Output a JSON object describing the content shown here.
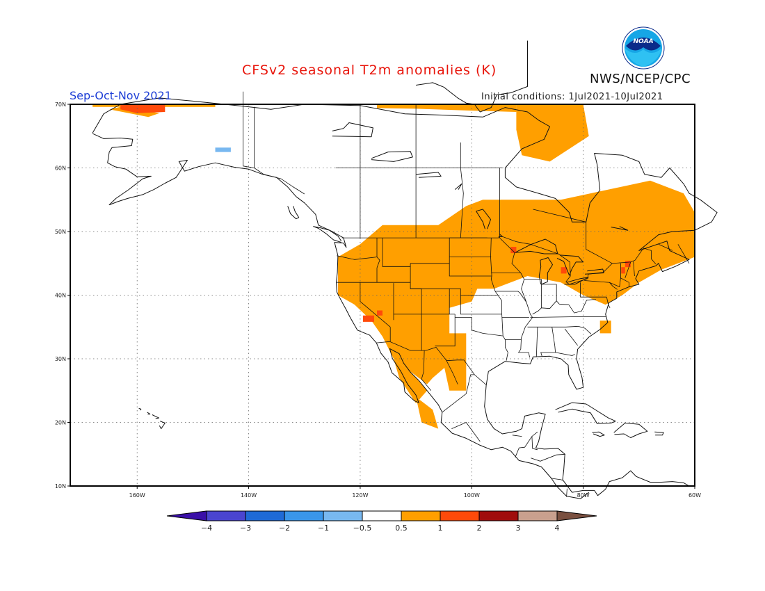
{
  "title": "CFSv2 seasonal T2m anomalies (K)",
  "agency": "NWS/NCEP/CPC",
  "logo_text": "NOAA",
  "season": "Sep-Oct-Nov 2021",
  "initial_conditions": "Initial conditions: 1Jul2021-10Jul2021",
  "map": {
    "projection": "equirectangular",
    "lon_range": [
      -172,
      -60
    ],
    "lat_range": [
      10,
      70
    ],
    "lat_ticks": [
      {
        "value": 70,
        "label": "70N"
      },
      {
        "value": 60,
        "label": "60N"
      },
      {
        "value": 50,
        "label": "50N"
      },
      {
        "value": 40,
        "label": "40N"
      },
      {
        "value": 30,
        "label": "30N"
      },
      {
        "value": 20,
        "label": "20N"
      },
      {
        "value": 10,
        "label": "10N"
      }
    ],
    "lon_ticks": [
      {
        "value": -160,
        "label": "160W"
      },
      {
        "value": -140,
        "label": "140W"
      },
      {
        "value": -120,
        "label": "120W"
      },
      {
        "value": -100,
        "label": "100W"
      },
      {
        "value": -80,
        "label": "80W"
      },
      {
        "value": -60,
        "label": "60W"
      }
    ],
    "grid": "dotted"
  },
  "colorbar": {
    "boundaries": [
      "-4",
      "-3",
      "-2",
      "-1",
      "-0.5",
      "0.5",
      "1",
      "2",
      "3",
      "4"
    ],
    "colors": [
      "#3a0fa8",
      "#4a45d0",
      "#1f6ad6",
      "#3a96ea",
      "#78b8f0",
      "#ffffff",
      "#ff9f00",
      "#ff4a0a",
      "#a00d0d",
      "#c9a08e",
      "#7a5040"
    ]
  },
  "anomaly_regions": [
    {
      "level": "0.5-1",
      "color": "#ff9f00",
      "polygon": [
        [
          -168,
          69.6
        ],
        [
          -146,
          69.6
        ],
        [
          -146,
          70
        ],
        [
          -168,
          70
        ]
      ]
    },
    {
      "level": "0.5-1",
      "color": "#ff9f00",
      "polygon": [
        [
          -165,
          69.2
        ],
        [
          -158,
          68
        ],
        [
          -156,
          68.6
        ],
        [
          -163,
          69.6
        ]
      ]
    },
    {
      "level": "1-2",
      "color": "#ff4a0a",
      "polygon": [
        [
          -163,
          70
        ],
        [
          -155,
          70
        ],
        [
          -155,
          68.8
        ],
        [
          -160,
          68.6
        ],
        [
          -163,
          69.2
        ]
      ]
    },
    {
      "level": "-1--0.5",
      "color": "#78b8f0",
      "polygon": [
        [
          -146,
          63.2
        ],
        [
          -143.2,
          63.2
        ],
        [
          -143.2,
          62.5
        ],
        [
          -146,
          62.5
        ]
      ]
    },
    {
      "level": "0.5-1",
      "color": "#ff9f00",
      "polygon": [
        [
          -117,
          70
        ],
        [
          -92,
          70
        ],
        [
          -92,
          68.8
        ],
        [
          -100,
          69
        ],
        [
          -110,
          69.3
        ],
        [
          -117,
          69.4
        ]
      ]
    },
    {
      "level": "0.5-1",
      "color": "#ff9f00",
      "polygon": [
        [
          -92,
          70
        ],
        [
          -80,
          70
        ],
        [
          -79,
          65
        ],
        [
          -86,
          61
        ],
        [
          -91,
          62
        ],
        [
          -92,
          66
        ]
      ]
    },
    {
      "level": "0.5-1",
      "color": "#ff9f00",
      "polygon": [
        [
          -84,
          55
        ],
        [
          -68,
          58
        ],
        [
          -62,
          56
        ],
        [
          -60,
          53
        ],
        [
          -60,
          46
        ],
        [
          -66,
          44
        ],
        [
          -70,
          42
        ],
        [
          -73,
          40
        ],
        [
          -76,
          38.5
        ],
        [
          -80,
          40
        ],
        [
          -84,
          42
        ],
        [
          -90,
          43
        ],
        [
          -96,
          41
        ],
        [
          -99,
          41
        ],
        [
          -100,
          39
        ],
        [
          -104,
          38
        ],
        [
          -104,
          33
        ],
        [
          -103,
          30
        ],
        [
          -107,
          27
        ],
        [
          -108,
          26
        ],
        [
          -114,
          30
        ],
        [
          -116,
          33.5
        ],
        [
          -118,
          36
        ],
        [
          -121,
          38.5
        ],
        [
          -124,
          40
        ],
        [
          -124,
          42
        ],
        [
          -124,
          46
        ],
        [
          -122,
          47
        ],
        [
          -120,
          48
        ],
        [
          -116,
          51
        ],
        [
          -106,
          51
        ],
        [
          -101,
          54
        ],
        [
          -98,
          55
        ],
        [
          -93,
          55
        ],
        [
          -90,
          55
        ],
        [
          -86,
          55
        ]
      ]
    },
    {
      "level": "0.5-1",
      "color": "#ff9f00",
      "polygon": [
        [
          -105,
          34
        ],
        [
          -101,
          34
        ],
        [
          -101,
          25
        ],
        [
          -104,
          25
        ],
        [
          -105,
          29
        ]
      ]
    },
    {
      "level": "0.5-1",
      "color": "#ff9f00",
      "polygon": [
        [
          -114,
          30
        ],
        [
          -111,
          28
        ],
        [
          -108,
          25
        ],
        [
          -110,
          23
        ],
        [
          -113,
          27
        ]
      ]
    },
    {
      "level": "0.5-1",
      "color": "#ff9f00",
      "polygon": [
        [
          -110,
          24
        ],
        [
          -107,
          22
        ],
        [
          -106,
          19
        ],
        [
          -109,
          20
        ]
      ]
    },
    {
      "level": "0.5-1",
      "color": "#ff9f00",
      "polygon": [
        [
          -77,
          36
        ],
        [
          -75,
          36
        ],
        [
          -75,
          34
        ],
        [
          -77,
          34
        ]
      ]
    },
    {
      "level": "1-2",
      "color": "#ff4a0a",
      "polygon": [
        [
          -119.5,
          36.8
        ],
        [
          -117.5,
          36.8
        ],
        [
          -117.5,
          35.8
        ],
        [
          -119.5,
          35.8
        ]
      ]
    },
    {
      "level": "1-2",
      "color": "#ff4a0a",
      "polygon": [
        [
          -117,
          37.6
        ],
        [
          -116,
          37.6
        ],
        [
          -116,
          36.8
        ],
        [
          -117,
          36.8
        ]
      ]
    },
    {
      "level": "1-2",
      "color": "#ff4a0a",
      "polygon": [
        [
          -93,
          47.6
        ],
        [
          -92,
          47.6
        ],
        [
          -92,
          46.6
        ],
        [
          -93,
          46.6
        ]
      ]
    },
    {
      "level": "1-2",
      "color": "#ff4a0a",
      "polygon": [
        [
          -84,
          44.4
        ],
        [
          -83,
          44.4
        ],
        [
          -83,
          43.4
        ],
        [
          -84,
          43.4
        ]
      ]
    },
    {
      "level": "1-2",
      "color": "#ff4a0a",
      "polygon": [
        [
          -72.5,
          45.4
        ],
        [
          -71.5,
          45.4
        ],
        [
          -71.5,
          44.4
        ],
        [
          -72.5,
          44.4
        ]
      ]
    },
    {
      "level": "1-2",
      "color": "#ff4a0a",
      "polygon": [
        [
          -73.2,
          44.4
        ],
        [
          -72.5,
          44.4
        ],
        [
          -72.5,
          43.4
        ],
        [
          -73.2,
          43.4
        ]
      ]
    }
  ]
}
